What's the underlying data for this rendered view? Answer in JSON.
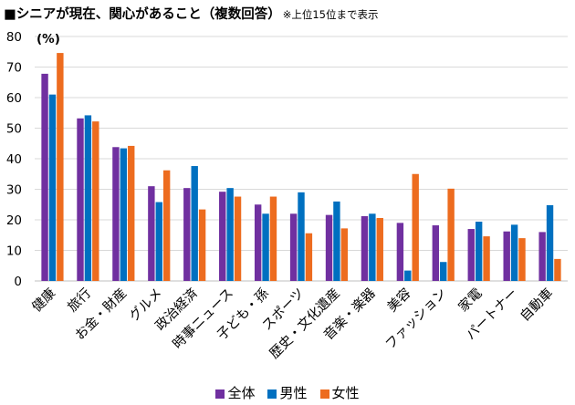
{
  "title": "■シニアが現在、関心があること（複数回答）",
  "title_note": "※上位15位まで表示",
  "chart_data": {
    "type": "bar",
    "ylabel": "(%)",
    "ylim": [
      0,
      80
    ],
    "yticks": [
      0,
      10,
      20,
      30,
      40,
      50,
      60,
      70,
      80
    ],
    "grid": true,
    "legend_position": "bottom",
    "categories": [
      "健康",
      "旅行",
      "お金・財産",
      "グルメ",
      "政治経済",
      "時事ニュース",
      "子ども・孫",
      "スポーツ",
      "歴史・文化遺産",
      "音楽・楽器",
      "美容",
      "ファッション",
      "家電",
      "パートナー",
      "自動車"
    ],
    "series": [
      {
        "name": "全体",
        "color": "#7030a0",
        "values": [
          67.8,
          53.2,
          43.8,
          31.0,
          30.4,
          29.2,
          25.0,
          22.0,
          21.6,
          21.2,
          19.0,
          18.2,
          17.0,
          16.2,
          16.0
        ]
      },
      {
        "name": "男性",
        "color": "#0070c0",
        "values": [
          61.0,
          54.2,
          43.4,
          25.8,
          37.6,
          30.4,
          22.0,
          29.0,
          26.0,
          22.0,
          3.4,
          6.2,
          19.4,
          18.4,
          24.8
        ]
      },
      {
        "name": "女性",
        "color": "#ed6c1f",
        "values": [
          74.6,
          52.2,
          44.2,
          36.2,
          23.4,
          27.6,
          27.6,
          15.6,
          17.2,
          20.6,
          35.0,
          30.2,
          14.6,
          14.0,
          7.2
        ]
      }
    ]
  }
}
